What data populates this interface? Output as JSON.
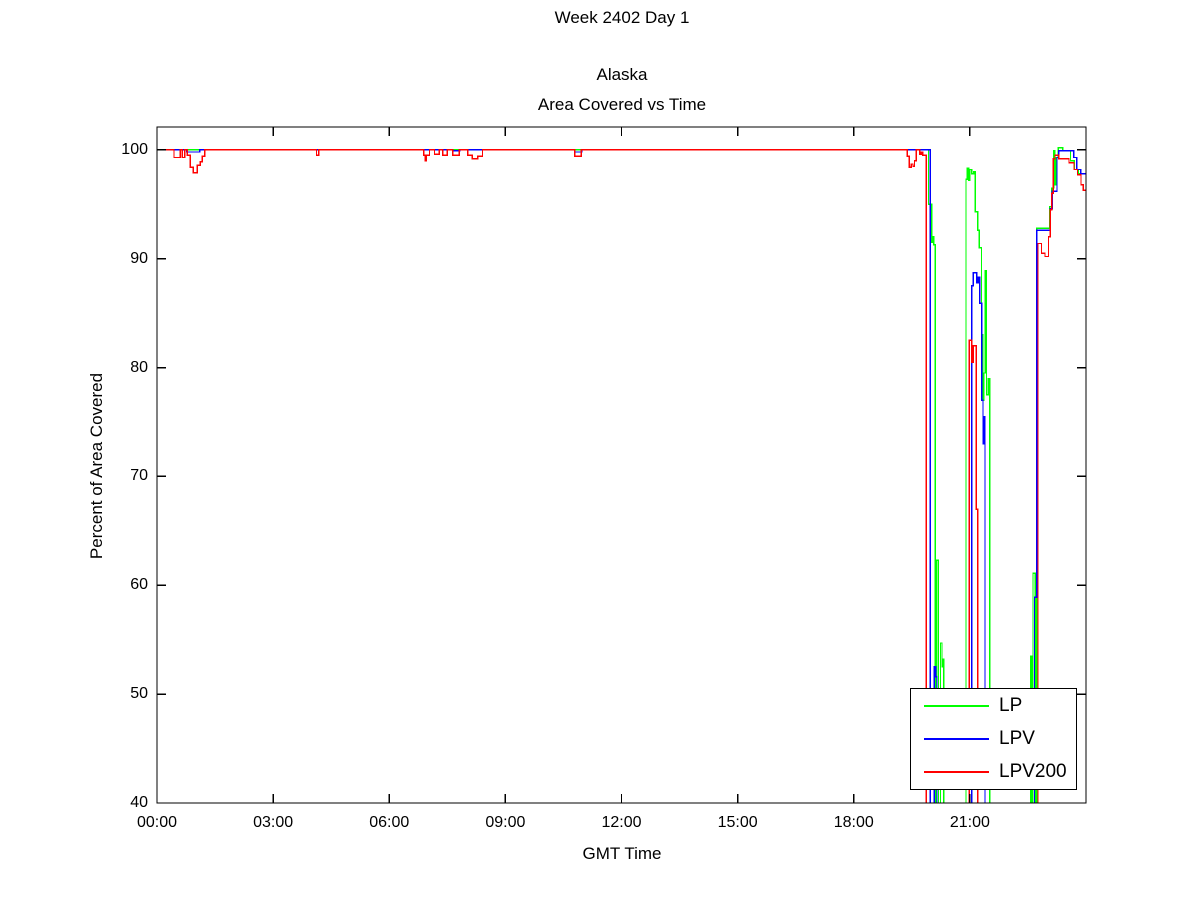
{
  "chart_data": {
    "type": "line",
    "title": "Week 2402 Day 1",
    "subtitle": [
      "Alaska",
      "Area Covered vs Time"
    ],
    "xlabel": "GMT Time",
    "ylabel": "Percent of Area Covered",
    "xlim": [
      0,
      24
    ],
    "ylim": [
      40,
      102.1
    ],
    "grid": false,
    "axis_color": "#000000",
    "x_ticks": [
      {
        "hour": 0,
        "label": "00:00"
      },
      {
        "hour": 3,
        "label": "03:00"
      },
      {
        "hour": 6,
        "label": "06:00"
      },
      {
        "hour": 9,
        "label": "09:00"
      },
      {
        "hour": 12,
        "label": "12:00"
      },
      {
        "hour": 15,
        "label": "15:00"
      },
      {
        "hour": 18,
        "label": "18:00"
      },
      {
        "hour": 21,
        "label": "21:00"
      }
    ],
    "y_ticks": [
      40,
      50,
      60,
      70,
      80,
      90,
      100
    ],
    "legend": {
      "position": "bottom-right",
      "entries": [
        {
          "name": "LP",
          "color": "#00ff00"
        },
        {
          "name": "LPV",
          "color": "#0000ff"
        },
        {
          "name": "LPV200",
          "color": "#ff0000"
        }
      ]
    },
    "series": [
      {
        "name": "LP",
        "color": "#00ff00",
        "points": [
          [
            0,
            100
          ],
          [
            19.93,
            100
          ],
          [
            19.93,
            95.0
          ],
          [
            20.02,
            95.0
          ],
          [
            20.02,
            91.5
          ],
          [
            20.04,
            91.5
          ],
          [
            20.04,
            92.0
          ],
          [
            20.07,
            92.0
          ],
          [
            20.07,
            91.3
          ],
          [
            20.11,
            91.3
          ],
          [
            20.11,
            30
          ],
          [
            20.14,
            30
          ],
          [
            20.14,
            62.3
          ],
          [
            20.19,
            62.3
          ],
          [
            20.19,
            30
          ],
          [
            20.24,
            30
          ],
          [
            20.24,
            54.7
          ],
          [
            20.28,
            54.7
          ],
          [
            20.28,
            52.5
          ],
          [
            20.3,
            52.5
          ],
          [
            20.3,
            53.2
          ],
          [
            20.33,
            53.2
          ],
          [
            20.33,
            30
          ],
          [
            20.9,
            30
          ],
          [
            20.9,
            97.3
          ],
          [
            20.93,
            97.3
          ],
          [
            20.93,
            98.3
          ],
          [
            20.97,
            98.3
          ],
          [
            20.97,
            97.2
          ],
          [
            21.0,
            97.2
          ],
          [
            21.0,
            98.2
          ],
          [
            21.05,
            98.2
          ],
          [
            21.05,
            97.8
          ],
          [
            21.1,
            97.8
          ],
          [
            21.1,
            98.0
          ],
          [
            21.14,
            98.0
          ],
          [
            21.14,
            94.3
          ],
          [
            21.2,
            94.3
          ],
          [
            21.2,
            92.6
          ],
          [
            21.24,
            92.6
          ],
          [
            21.24,
            91.0
          ],
          [
            21.3,
            91.0
          ],
          [
            21.3,
            83.0
          ],
          [
            21.33,
            83.0
          ],
          [
            21.33,
            77.0
          ],
          [
            21.36,
            77.0
          ],
          [
            21.36,
            79.5
          ],
          [
            21.4,
            79.5
          ],
          [
            21.4,
            88.9
          ],
          [
            21.43,
            88.9
          ],
          [
            21.43,
            77.5
          ],
          [
            21.47,
            77.5
          ],
          [
            21.47,
            79.0
          ],
          [
            21.51,
            79.0
          ],
          [
            21.51,
            30
          ],
          [
            22.57,
            30
          ],
          [
            22.57,
            53.5
          ],
          [
            22.61,
            53.5
          ],
          [
            22.61,
            30
          ],
          [
            22.63,
            30
          ],
          [
            22.63,
            61.1
          ],
          [
            22.69,
            61.1
          ],
          [
            22.69,
            30
          ],
          [
            22.73,
            30
          ],
          [
            22.73,
            92.8
          ],
          [
            23.06,
            92.8
          ],
          [
            23.06,
            94.8
          ],
          [
            23.12,
            94.8
          ],
          [
            23.12,
            96.5
          ],
          [
            23.17,
            96.5
          ],
          [
            23.17,
            99.9
          ],
          [
            23.2,
            99.9
          ],
          [
            23.2,
            96.8
          ],
          [
            23.23,
            96.8
          ],
          [
            23.23,
            99.3
          ],
          [
            23.28,
            99.3
          ],
          [
            23.28,
            100.2
          ],
          [
            23.4,
            100.2
          ],
          [
            23.4,
            99.9
          ],
          [
            23.6,
            99.9
          ],
          [
            23.6,
            99.0
          ],
          [
            23.7,
            99.0
          ],
          [
            23.7,
            98.2
          ],
          [
            23.8,
            98.2
          ],
          [
            23.8,
            97.8
          ],
          [
            24,
            97.8
          ]
        ]
      },
      {
        "name": "LPV",
        "color": "#0000ff",
        "points": [
          [
            0,
            100
          ],
          [
            0.77,
            100
          ],
          [
            0.77,
            99.8
          ],
          [
            1.1,
            99.8
          ],
          [
            1.1,
            100
          ],
          [
            7.64,
            100
          ],
          [
            7.64,
            99.9
          ],
          [
            7.82,
            99.9
          ],
          [
            7.82,
            100
          ],
          [
            10.79,
            100
          ],
          [
            10.79,
            99.8
          ],
          [
            10.97,
            99.8
          ],
          [
            10.97,
            100
          ],
          [
            19.98,
            100
          ],
          [
            19.98,
            30
          ],
          [
            20.08,
            30
          ],
          [
            20.08,
            52.5
          ],
          [
            20.12,
            52.5
          ],
          [
            20.12,
            51.6
          ],
          [
            20.15,
            51.6
          ],
          [
            20.15,
            30
          ],
          [
            21.05,
            30
          ],
          [
            21.05,
            87.5
          ],
          [
            21.09,
            87.5
          ],
          [
            21.09,
            88.7
          ],
          [
            21.18,
            88.7
          ],
          [
            21.18,
            87.8
          ],
          [
            21.22,
            87.8
          ],
          [
            21.22,
            88.3
          ],
          [
            21.26,
            88.3
          ],
          [
            21.26,
            85.9
          ],
          [
            21.31,
            85.9
          ],
          [
            21.31,
            77.0
          ],
          [
            21.34,
            77.0
          ],
          [
            21.34,
            73.0
          ],
          [
            21.37,
            73.0
          ],
          [
            21.37,
            75.5
          ],
          [
            21.39,
            75.5
          ],
          [
            21.39,
            30
          ],
          [
            22.67,
            30
          ],
          [
            22.67,
            58.9
          ],
          [
            22.73,
            58.9
          ],
          [
            22.73,
            92.6
          ],
          [
            23.08,
            92.6
          ],
          [
            23.08,
            94.6
          ],
          [
            23.13,
            94.6
          ],
          [
            23.13,
            96.2
          ],
          [
            23.25,
            96.2
          ],
          [
            23.25,
            99.3
          ],
          [
            23.3,
            99.3
          ],
          [
            23.3,
            99.9
          ],
          [
            23.68,
            99.9
          ],
          [
            23.68,
            99.3
          ],
          [
            23.76,
            99.3
          ],
          [
            23.76,
            98.2
          ],
          [
            23.86,
            98.2
          ],
          [
            23.86,
            97.8
          ],
          [
            24,
            97.8
          ]
        ]
      },
      {
        "name": "LPV200",
        "color": "#ff0000",
        "points": [
          [
            0,
            100
          ],
          [
            0.44,
            100
          ],
          [
            0.44,
            99.3
          ],
          [
            0.6,
            99.3
          ],
          [
            0.6,
            100
          ],
          [
            0.65,
            100
          ],
          [
            0.65,
            99.3
          ],
          [
            0.72,
            99.3
          ],
          [
            0.72,
            100
          ],
          [
            0.78,
            100
          ],
          [
            0.78,
            99.5
          ],
          [
            0.86,
            99.5
          ],
          [
            0.86,
            98.4
          ],
          [
            0.94,
            98.4
          ],
          [
            0.94,
            97.9
          ],
          [
            1.04,
            97.9
          ],
          [
            1.04,
            98.6
          ],
          [
            1.12,
            98.6
          ],
          [
            1.12,
            98.9
          ],
          [
            1.17,
            98.9
          ],
          [
            1.17,
            99.4
          ],
          [
            1.23,
            99.4
          ],
          [
            1.23,
            100
          ],
          [
            4.12,
            100
          ],
          [
            4.12,
            99.5
          ],
          [
            4.18,
            99.5
          ],
          [
            4.18,
            100
          ],
          [
            6.89,
            100
          ],
          [
            6.89,
            99.5
          ],
          [
            6.93,
            99.5
          ],
          [
            6.93,
            99.0
          ],
          [
            6.96,
            99.0
          ],
          [
            6.96,
            99.5
          ],
          [
            7.04,
            99.5
          ],
          [
            7.04,
            100
          ],
          [
            7.17,
            100
          ],
          [
            7.17,
            99.6
          ],
          [
            7.29,
            99.6
          ],
          [
            7.29,
            100
          ],
          [
            7.38,
            100
          ],
          [
            7.38,
            99.5
          ],
          [
            7.5,
            99.5
          ],
          [
            7.5,
            100
          ],
          [
            7.64,
            100
          ],
          [
            7.64,
            99.5
          ],
          [
            7.81,
            99.5
          ],
          [
            7.81,
            100
          ],
          [
            8.03,
            100
          ],
          [
            8.03,
            99.5
          ],
          [
            8.14,
            99.5
          ],
          [
            8.14,
            99.2
          ],
          [
            8.29,
            99.2
          ],
          [
            8.29,
            99.4
          ],
          [
            8.41,
            99.4
          ],
          [
            8.41,
            100
          ],
          [
            10.79,
            100
          ],
          [
            10.79,
            99.4
          ],
          [
            10.96,
            99.4
          ],
          [
            10.96,
            100
          ],
          [
            19.38,
            100
          ],
          [
            19.38,
            99.4
          ],
          [
            19.43,
            99.4
          ],
          [
            19.43,
            98.4
          ],
          [
            19.49,
            98.4
          ],
          [
            19.49,
            98.7
          ],
          [
            19.53,
            98.7
          ],
          [
            19.53,
            98.5
          ],
          [
            19.57,
            98.5
          ],
          [
            19.57,
            99.0
          ],
          [
            19.61,
            99.0
          ],
          [
            19.61,
            100
          ],
          [
            19.7,
            100
          ],
          [
            19.7,
            99.6
          ],
          [
            19.74,
            99.6
          ],
          [
            19.74,
            99.8
          ],
          [
            19.78,
            99.8
          ],
          [
            19.78,
            99.5
          ],
          [
            19.87,
            99.5
          ],
          [
            19.87,
            30
          ],
          [
            20.98,
            30
          ],
          [
            20.98,
            82.5
          ],
          [
            21.05,
            82.5
          ],
          [
            21.05,
            80.5
          ],
          [
            21.09,
            80.5
          ],
          [
            21.09,
            82.0
          ],
          [
            21.16,
            82.0
          ],
          [
            21.16,
            67.0
          ],
          [
            21.2,
            67.0
          ],
          [
            21.2,
            30
          ],
          [
            22.76,
            30
          ],
          [
            22.76,
            91.4
          ],
          [
            22.85,
            91.4
          ],
          [
            22.85,
            90.5
          ],
          [
            22.94,
            90.5
          ],
          [
            22.94,
            90.2
          ],
          [
            23.03,
            90.2
          ],
          [
            23.03,
            92.0
          ],
          [
            23.08,
            92.0
          ],
          [
            23.08,
            94.5
          ],
          [
            23.12,
            94.5
          ],
          [
            23.12,
            96.0
          ],
          [
            23.15,
            96.0
          ],
          [
            23.15,
            99.2
          ],
          [
            23.2,
            99.2
          ],
          [
            23.2,
            99.5
          ],
          [
            23.3,
            99.5
          ],
          [
            23.3,
            99.2
          ],
          [
            23.56,
            99.2
          ],
          [
            23.56,
            98.8
          ],
          [
            23.69,
            98.8
          ],
          [
            23.69,
            98.2
          ],
          [
            23.78,
            98.2
          ],
          [
            23.78,
            97.7
          ],
          [
            23.87,
            97.7
          ],
          [
            23.87,
            96.8
          ],
          [
            23.93,
            96.8
          ],
          [
            23.93,
            96.3
          ],
          [
            24,
            96.3
          ]
        ]
      }
    ]
  }
}
